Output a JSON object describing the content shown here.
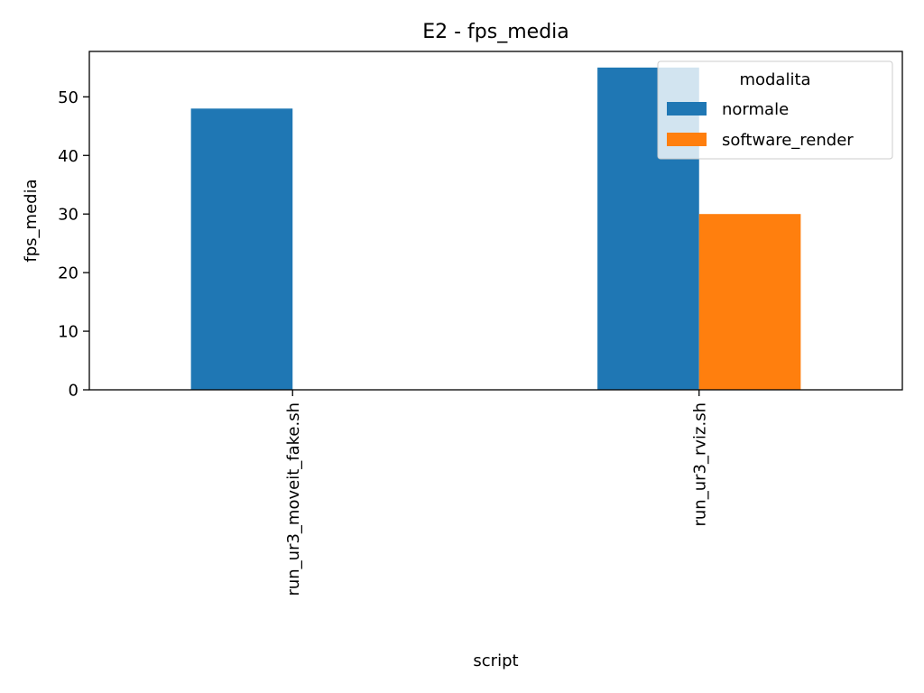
{
  "chart_data": {
    "type": "bar",
    "title": "E2 - fps_media",
    "xlabel": "script",
    "ylabel": "fps_media",
    "categories": [
      "run_ur3_moveit_fake.sh",
      "run_ur3_rviz.sh"
    ],
    "series": [
      {
        "name": "normale",
        "values": [
          48,
          55
        ],
        "color": "#1f77b4"
      },
      {
        "name": "software_render",
        "values": [
          0,
          30
        ],
        "color": "#ff7f0e"
      }
    ],
    "ylim": [
      0,
      57.75
    ],
    "yticks": [
      0,
      10,
      20,
      30,
      40,
      50
    ],
    "grid": false,
    "legend": {
      "title": "modalita",
      "placement": "top-right"
    }
  }
}
